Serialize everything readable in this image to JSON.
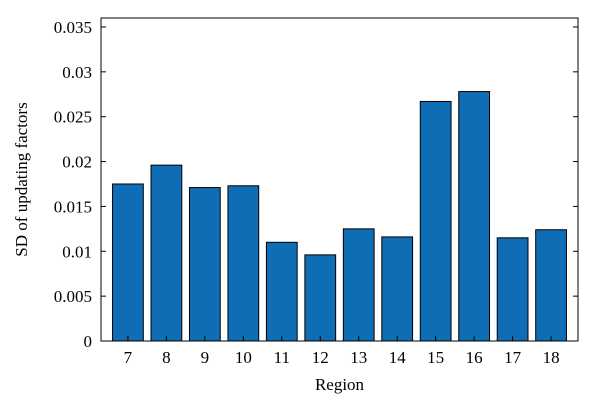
{
  "chart_data": {
    "type": "bar",
    "categories": [
      "7",
      "8",
      "9",
      "10",
      "11",
      "12",
      "13",
      "14",
      "15",
      "16",
      "17",
      "18"
    ],
    "values": [
      0.0175,
      0.0196,
      0.0171,
      0.0173,
      0.011,
      0.0096,
      0.0125,
      0.0116,
      0.0267,
      0.0278,
      0.0115,
      0.0124
    ],
    "xlabel": "Region",
    "ylabel": "SD of updating factors",
    "ylim": [
      0,
      0.036
    ],
    "yticks": [
      "0",
      "0.005",
      "0.01",
      "0.015",
      "0.02",
      "0.025",
      "0.03",
      "0.035"
    ],
    "bar_color": "#0e6db5",
    "grid": false,
    "box": true
  }
}
